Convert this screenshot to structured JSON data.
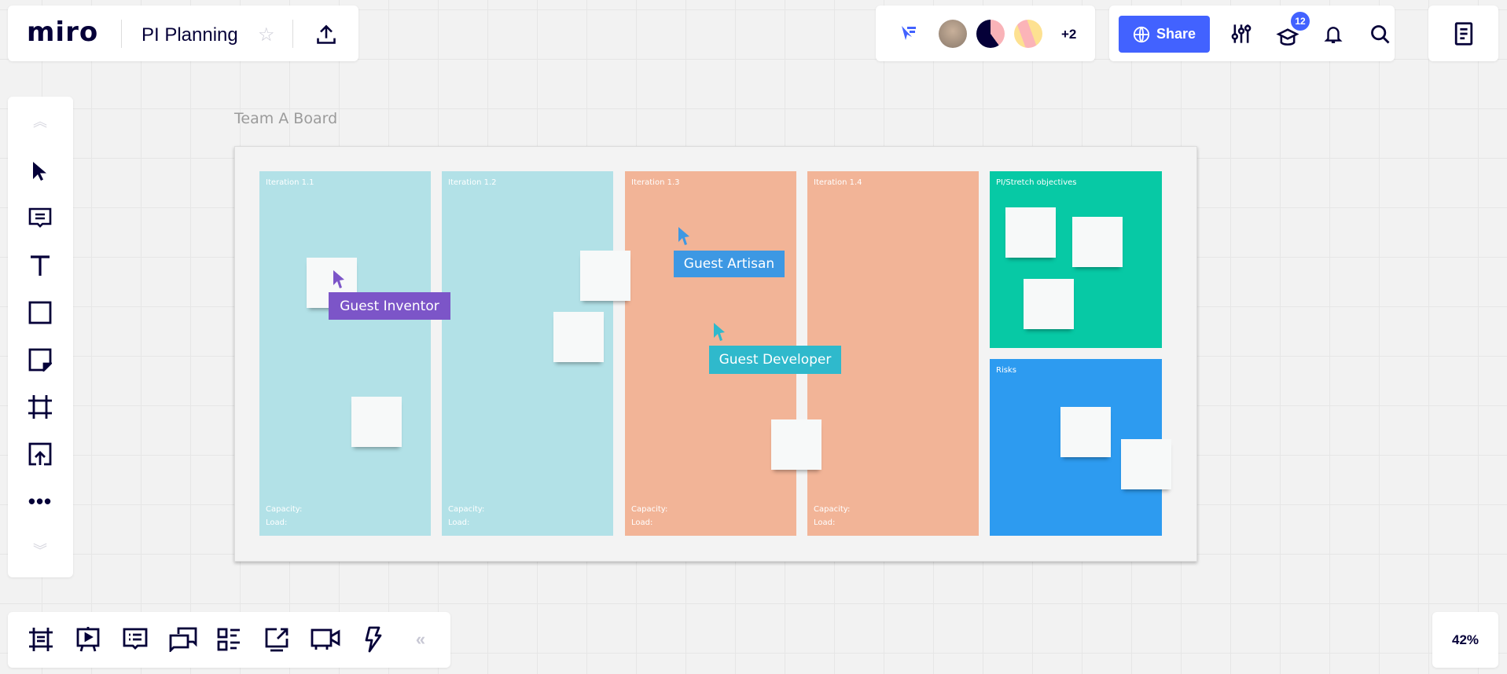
{
  "header": {
    "logo": "miro",
    "board_title": "PI Planning",
    "collaborators_extra": "+2",
    "share_label": "Share",
    "notifications_badge": "12"
  },
  "canvas": {
    "frame_title": "Team A Board",
    "columns": [
      {
        "title": "Iteration 1.1",
        "capacity": "Capacity:",
        "load": "Load:",
        "color": "#b2e1e7"
      },
      {
        "title": "Iteration 1.2",
        "capacity": "Capacity:",
        "load": "Load:",
        "color": "#b2e1e7"
      },
      {
        "title": "Iteration 1.3",
        "capacity": "Capacity:",
        "load": "Load:",
        "color": "#f2b497"
      },
      {
        "title": "Iteration 1.4",
        "capacity": "Capacity:",
        "load": "Load:",
        "color": "#f2b497"
      }
    ],
    "objectives_title": "PI/Stretch objectives",
    "risks_title": "Risks",
    "cursors": [
      {
        "name": "Guest Inventor",
        "color": "#7c55c8"
      },
      {
        "name": "Guest Artisan",
        "color": "#3d98e3"
      },
      {
        "name": "Guest Developer",
        "color": "#2fb9cc"
      }
    ]
  },
  "zoom": {
    "level": "42%"
  },
  "colors": {
    "accent": "#4262ff",
    "objectives": "#07c9a5",
    "risks": "#2d9bf0"
  }
}
